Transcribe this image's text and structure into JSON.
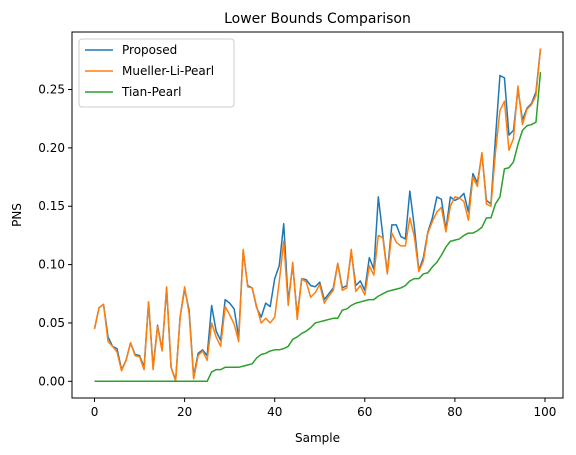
{
  "chart_data": {
    "type": "line",
    "title": "Lower Bounds Comparison",
    "xlabel": "Sample",
    "ylabel": "PNS",
    "xlim": [
      -5.0,
      104.0
    ],
    "ylim": [
      -0.0143,
      0.2993
    ],
    "xticks": [
      0,
      20,
      40,
      60,
      80,
      100
    ],
    "xtick_labels": [
      "0",
      "20",
      "40",
      "60",
      "80",
      "100"
    ],
    "yticks": [
      0.0,
      0.05,
      0.1,
      0.15,
      0.2,
      0.25
    ],
    "ytick_labels": [
      "0.00",
      "0.05",
      "0.10",
      "0.15",
      "0.20",
      "0.25"
    ],
    "grid": false,
    "legend_position": "top-left",
    "series": [
      {
        "name": "Proposed",
        "color": "#1f77b4",
        "values": [
          0.045,
          0.063,
          0.066,
          0.038,
          0.03,
          0.028,
          0.01,
          0.018,
          0.033,
          0.023,
          0.022,
          0.012,
          0.068,
          0.012,
          0.048,
          0.027,
          0.08,
          0.012,
          0.001,
          0.055,
          0.079,
          0.061,
          0.004,
          0.024,
          0.027,
          0.022,
          0.065,
          0.043,
          0.035,
          0.07,
          0.067,
          0.062,
          0.038,
          0.112,
          0.082,
          0.08,
          0.063,
          0.055,
          0.067,
          0.064,
          0.088,
          0.099,
          0.135,
          0.068,
          0.1,
          0.056,
          0.088,
          0.087,
          0.082,
          0.081,
          0.085,
          0.07,
          0.075,
          0.08,
          0.101,
          0.08,
          0.082,
          0.111,
          0.082,
          0.086,
          0.078,
          0.106,
          0.096,
          0.158,
          0.125,
          0.093,
          0.134,
          0.134,
          0.124,
          0.122,
          0.163,
          0.132,
          0.095,
          0.106,
          0.128,
          0.14,
          0.158,
          0.156,
          0.13,
          0.158,
          0.155,
          0.157,
          0.161,
          0.145,
          0.178,
          0.17,
          0.195,
          0.155,
          0.152,
          0.208,
          0.262,
          0.26,
          0.211,
          0.215,
          0.25,
          0.224,
          0.234,
          0.238,
          0.248,
          0.285
        ]
      },
      {
        "name": "Mueller-Li-Pearl",
        "color": "#ff7f0e",
        "values": [
          0.045,
          0.063,
          0.066,
          0.034,
          0.03,
          0.025,
          0.009,
          0.018,
          0.033,
          0.022,
          0.021,
          0.01,
          0.068,
          0.01,
          0.047,
          0.026,
          0.081,
          0.012,
          0.0,
          0.055,
          0.081,
          0.058,
          0.002,
          0.022,
          0.026,
          0.018,
          0.05,
          0.038,
          0.03,
          0.064,
          0.057,
          0.049,
          0.034,
          0.113,
          0.081,
          0.08,
          0.064,
          0.05,
          0.054,
          0.05,
          0.055,
          0.085,
          0.12,
          0.065,
          0.102,
          0.053,
          0.088,
          0.085,
          0.072,
          0.076,
          0.083,
          0.067,
          0.073,
          0.078,
          0.101,
          0.078,
          0.08,
          0.113,
          0.077,
          0.082,
          0.074,
          0.099,
          0.091,
          0.125,
          0.123,
          0.092,
          0.127,
          0.119,
          0.116,
          0.116,
          0.14,
          0.124,
          0.094,
          0.103,
          0.127,
          0.137,
          0.145,
          0.149,
          0.128,
          0.15,
          0.158,
          0.157,
          0.154,
          0.138,
          0.175,
          0.167,
          0.196,
          0.152,
          0.15,
          0.196,
          0.232,
          0.24,
          0.198,
          0.208,
          0.253,
          0.22,
          0.233,
          0.237,
          0.245,
          0.285
        ]
      },
      {
        "name": "Tian-Pearl",
        "color": "#2ca02c",
        "values": [
          0.0,
          0.0,
          0.0,
          0.0,
          0.0,
          0.0,
          0.0,
          0.0,
          0.0,
          0.0,
          0.0,
          0.0,
          0.0,
          0.0,
          0.0,
          0.0,
          0.0,
          0.0,
          0.0,
          0.0,
          0.0,
          0.0,
          0.0,
          0.0,
          0.0,
          0.0,
          0.008,
          0.01,
          0.01,
          0.012,
          0.012,
          0.012,
          0.012,
          0.013,
          0.014,
          0.015,
          0.02,
          0.023,
          0.024,
          0.026,
          0.027,
          0.027,
          0.028,
          0.03,
          0.036,
          0.038,
          0.041,
          0.043,
          0.046,
          0.05,
          0.051,
          0.052,
          0.053,
          0.054,
          0.054,
          0.061,
          0.062,
          0.065,
          0.067,
          0.068,
          0.069,
          0.07,
          0.07,
          0.073,
          0.075,
          0.077,
          0.078,
          0.079,
          0.08,
          0.082,
          0.086,
          0.088,
          0.088,
          0.092,
          0.093,
          0.098,
          0.102,
          0.108,
          0.115,
          0.12,
          0.121,
          0.122,
          0.125,
          0.127,
          0.127,
          0.129,
          0.132,
          0.14,
          0.14,
          0.152,
          0.158,
          0.182,
          0.183,
          0.188,
          0.203,
          0.215,
          0.219,
          0.22,
          0.222,
          0.265
        ]
      }
    ]
  }
}
